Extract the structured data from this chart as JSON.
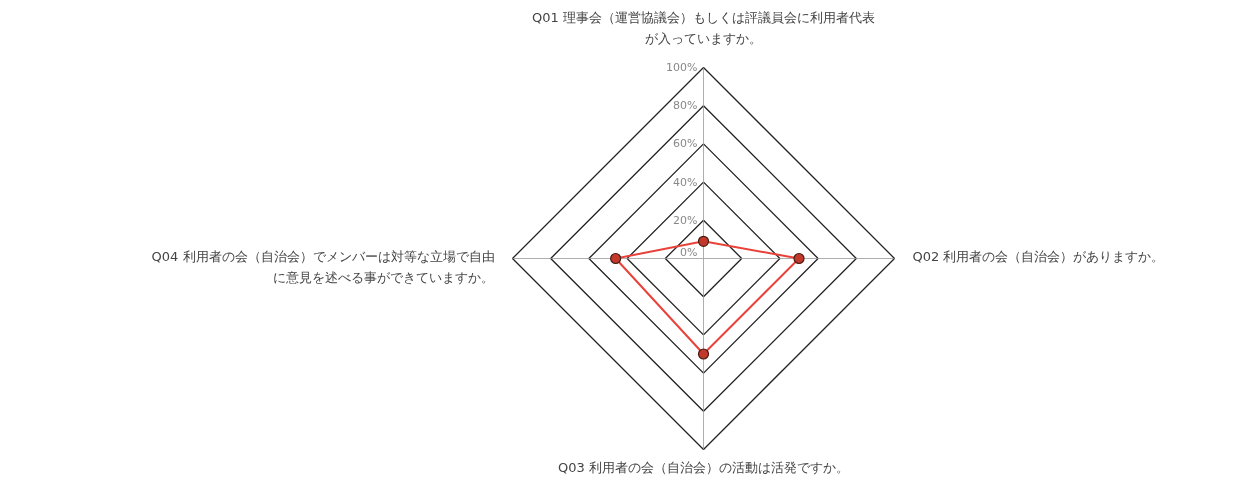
{
  "chart_data": {
    "type": "radar",
    "categories": [
      "Q01 理事会（運営協議会）もしくは評議員会に利用者代表が入っていますか。",
      "Q02 利用者の会（自治会）がありますか。",
      "Q03 利用者の会（自治会）の活動は活発ですか。",
      "Q04 利用者の会（自治会）でメンバーは対等な立場で自由に意見を述べる事ができていますか。"
    ],
    "series": [
      {
        "color": "#e8423a",
        "values": [
          9,
          50,
          50,
          46
        ]
      }
    ],
    "ylim": [
      0,
      100
    ],
    "yticks": [
      {
        "value": 0,
        "label": "0%"
      },
      {
        "value": 20,
        "label": "20%"
      },
      {
        "value": 40,
        "label": "40%"
      },
      {
        "value": 60,
        "label": "60%"
      },
      {
        "value": 80,
        "label": "80%"
      },
      {
        "value": 100,
        "label": "100%"
      }
    ],
    "grid": true,
    "marker": "circle"
  }
}
